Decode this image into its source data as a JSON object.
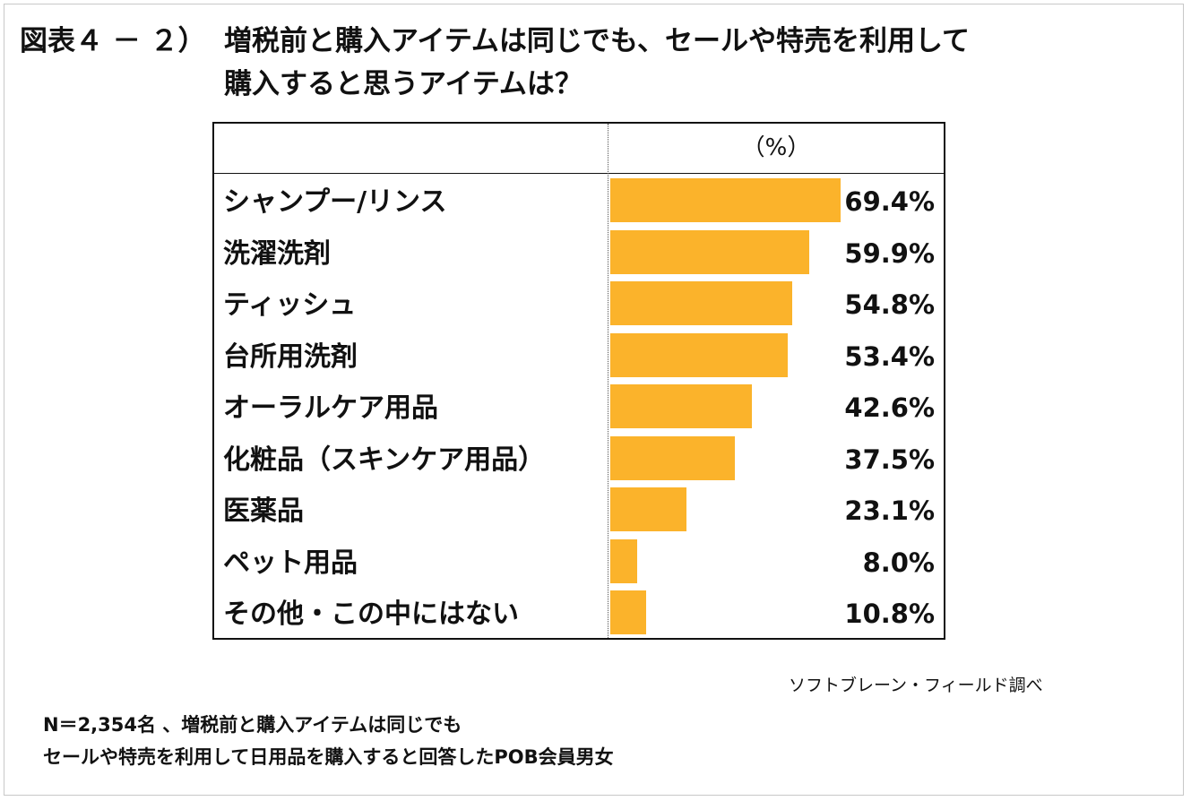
{
  "figure": {
    "title_prefix": "図表４ － ２）",
    "title_line1": "増税前と購入アイテムは同じでも、セールや特売を利用して",
    "title_line2": "購入すると思うアイテムは？",
    "source": "ソフトブレーン・フィールド調べ",
    "note_line1": "N＝2,354名 、増税前と購入アイテムは同じでも",
    "note_line2": "セールや特売を利用して日用品を購入すると回答したPOB会員男女"
  },
  "chart_data": {
    "type": "bar",
    "orientation": "horizontal",
    "unit_label": "（%）",
    "categories": [
      "シャンプー/リンス",
      "洗濯洗剤",
      "ティッシュ",
      "台所用洗剤",
      "オーラルケア用品",
      "化粧品（スキンケア用品）",
      "医薬品",
      "ペット用品",
      "その他・この中にはない"
    ],
    "values": [
      69.4,
      59.9,
      54.8,
      53.4,
      42.6,
      37.5,
      23.1,
      8.0,
      10.8
    ],
    "value_labels": [
      "69.4%",
      "59.9%",
      "54.8%",
      "53.4%",
      "42.6%",
      "37.5%",
      "23.1%",
      "8.0%",
      "10.8%"
    ],
    "bar_color": "#fbb32b",
    "xlim": [
      0,
      100
    ],
    "grid": false,
    "legend": "none"
  }
}
